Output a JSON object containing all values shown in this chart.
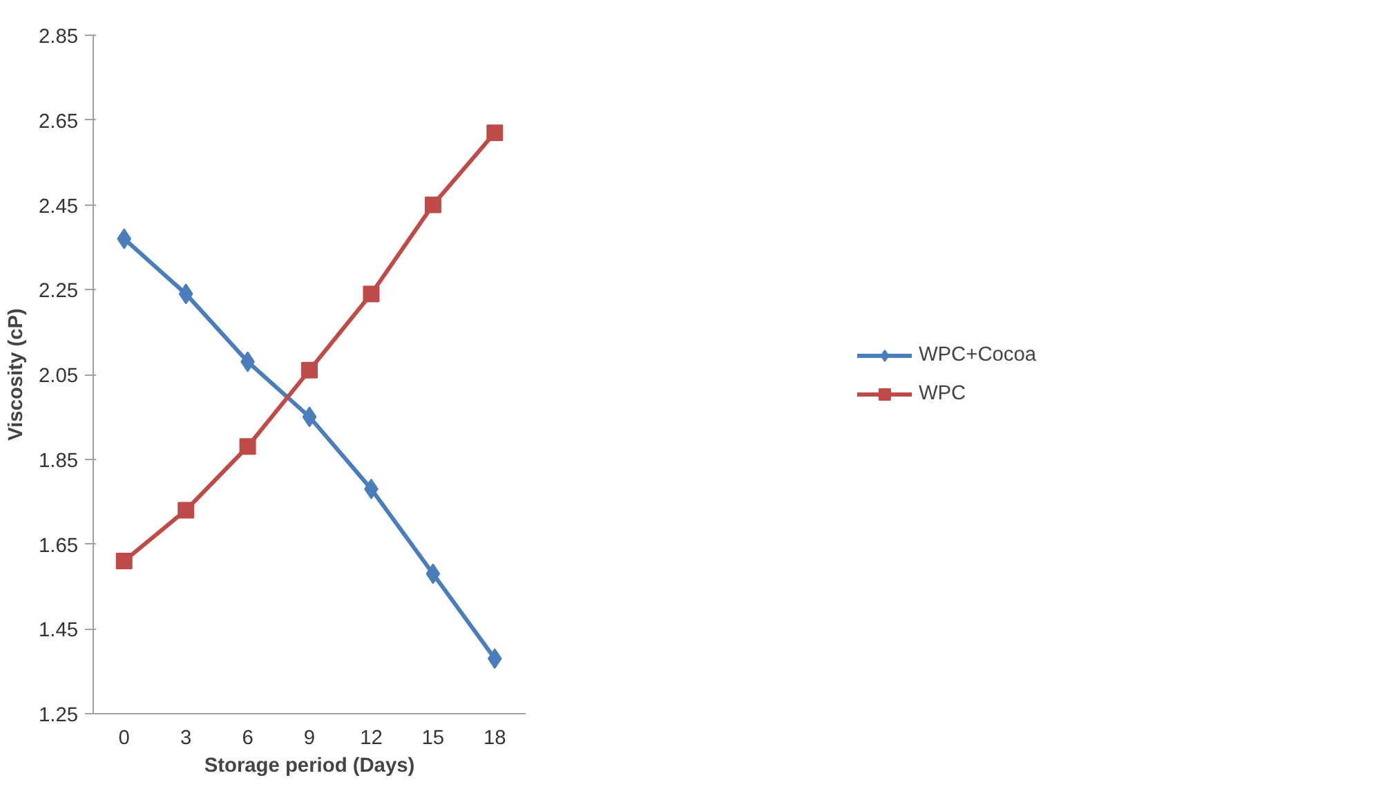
{
  "chart_data": {
    "type": "line",
    "xlabel": "Storage period (Days)",
    "ylabel": "Viscosity (cP)",
    "categories": [
      "0",
      "3",
      "6",
      "9",
      "12",
      "15",
      "18"
    ],
    "ylim": [
      1.25,
      2.85
    ],
    "yticks": [
      1.25,
      1.45,
      1.65,
      1.85,
      2.05,
      2.25,
      2.45,
      2.65,
      2.85
    ],
    "grid": false,
    "legend": "right",
    "series": [
      {
        "name": "WPC+Cocoa",
        "color": "#4a7ebb",
        "marker": "diamond",
        "values": [
          2.37,
          2.24,
          2.08,
          1.95,
          1.78,
          1.58,
          1.38
        ]
      },
      {
        "name": "WPC",
        "color": "#be4b48",
        "marker": "square",
        "values": [
          1.61,
          1.73,
          1.88,
          2.06,
          2.24,
          2.45,
          2.62
        ]
      }
    ]
  }
}
